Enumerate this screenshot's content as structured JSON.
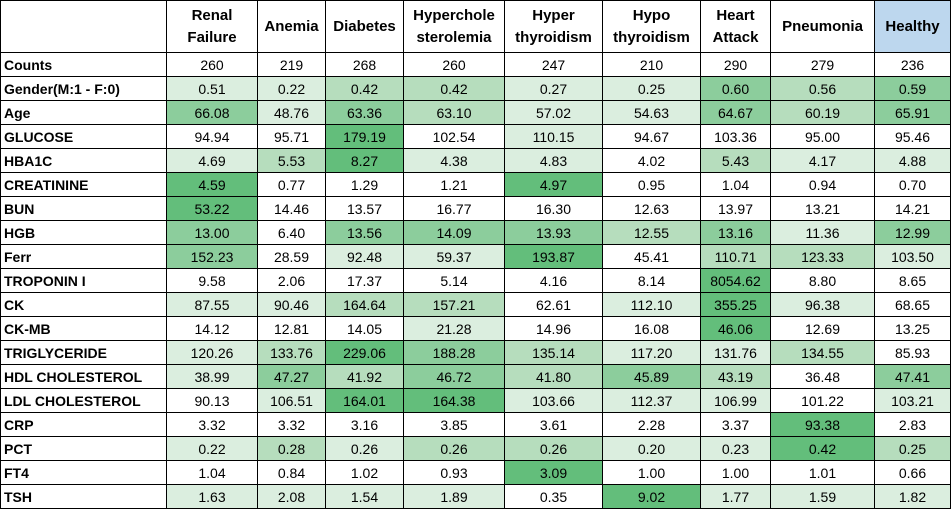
{
  "columns": [
    "Renal\nFailure",
    "Anemia",
    "Diabetes",
    "Hyperchole\nsterolemia",
    "Hyper\nthyroidism",
    "Hypo\nthyroidism",
    "Heart\nAttack",
    "Pneumonia",
    "Healthy"
  ],
  "highlight_column_color": "#bdd7ee",
  "heat_colors": {
    "strong": "#63be7b",
    "medium": "#8ccd9c",
    "light": "#b6ddbd",
    "pale": "#dbeedf",
    "none": "#ffffff"
  },
  "rows": [
    {
      "label": "Counts",
      "values": [
        "260",
        "219",
        "268",
        "260",
        "247",
        "210",
        "290",
        "279",
        "236"
      ],
      "shade": [
        "none",
        "none",
        "none",
        "none",
        "none",
        "none",
        "none",
        "none",
        "none"
      ]
    },
    {
      "label": "Gender(M:1 - F:0)",
      "values": [
        "0.51",
        "0.22",
        "0.42",
        "0.42",
        "0.27",
        "0.25",
        "0.60",
        "0.56",
        "0.59"
      ],
      "shade": [
        "pale",
        "pale",
        "light",
        "light",
        "pale",
        "pale",
        "medium",
        "light",
        "medium"
      ]
    },
    {
      "label": "Age",
      "values": [
        "66.08",
        "48.76",
        "63.36",
        "63.10",
        "57.02",
        "54.63",
        "64.67",
        "60.19",
        "65.91"
      ],
      "shade": [
        "medium",
        "pale",
        "medium",
        "light",
        "pale",
        "pale",
        "medium",
        "light",
        "medium"
      ]
    },
    {
      "label": "GLUCOSE",
      "values": [
        "94.94",
        "95.71",
        "179.19",
        "102.54",
        "110.15",
        "94.67",
        "103.36",
        "95.00",
        "95.46"
      ],
      "shade": [
        "none",
        "none",
        "strong",
        "none",
        "pale",
        "none",
        "none",
        "none",
        "none"
      ]
    },
    {
      "label": "HBA1C",
      "values": [
        "4.69",
        "5.53",
        "8.27",
        "4.38",
        "4.83",
        "4.02",
        "5.43",
        "4.17",
        "4.88"
      ],
      "shade": [
        "pale",
        "light",
        "strong",
        "pale",
        "pale",
        "none",
        "light",
        "pale",
        "pale"
      ]
    },
    {
      "label": "CREATININE",
      "values": [
        "4.59",
        "0.77",
        "1.29",
        "1.21",
        "4.97",
        "0.95",
        "1.04",
        "0.94",
        "0.70"
      ],
      "shade": [
        "strong",
        "none",
        "none",
        "none",
        "strong",
        "none",
        "none",
        "none",
        "none"
      ]
    },
    {
      "label": "BUN",
      "values": [
        "53.22",
        "14.46",
        "13.57",
        "16.77",
        "16.30",
        "12.63",
        "13.97",
        "13.21",
        "14.21"
      ],
      "shade": [
        "strong",
        "none",
        "none",
        "none",
        "none",
        "none",
        "none",
        "none",
        "none"
      ]
    },
    {
      "label": "HGB",
      "values": [
        "13.00",
        "6.40",
        "13.56",
        "14.09",
        "13.93",
        "12.55",
        "13.16",
        "11.36",
        "12.99"
      ],
      "shade": [
        "medium",
        "none",
        "medium",
        "medium",
        "medium",
        "light",
        "medium",
        "pale",
        "medium"
      ]
    },
    {
      "label": "Ferr",
      "values": [
        "152.23",
        "28.59",
        "92.48",
        "59.37",
        "193.87",
        "45.41",
        "110.71",
        "123.33",
        "103.50"
      ],
      "shade": [
        "medium",
        "none",
        "pale",
        "pale",
        "strong",
        "none",
        "light",
        "light",
        "pale"
      ]
    },
    {
      "label": "TROPONIN I",
      "values": [
        "9.58",
        "2.06",
        "17.37",
        "5.14",
        "4.16",
        "8.14",
        "8054.62",
        "8.80",
        "8.65"
      ],
      "shade": [
        "none",
        "none",
        "none",
        "none",
        "none",
        "none",
        "strong",
        "none",
        "none"
      ]
    },
    {
      "label": "CK",
      "values": [
        "87.55",
        "90.46",
        "164.64",
        "157.21",
        "62.61",
        "112.10",
        "355.25",
        "96.38",
        "68.65"
      ],
      "shade": [
        "pale",
        "pale",
        "light",
        "light",
        "none",
        "pale",
        "strong",
        "pale",
        "none"
      ]
    },
    {
      "label": "CK-MB",
      "values": [
        "14.12",
        "12.81",
        "14.05",
        "21.28",
        "14.96",
        "16.08",
        "46.06",
        "12.69",
        "13.25"
      ],
      "shade": [
        "none",
        "none",
        "none",
        "pale",
        "none",
        "none",
        "strong",
        "none",
        "none"
      ]
    },
    {
      "label": "TRIGLYCERIDE",
      "values": [
        "120.26",
        "133.76",
        "229.06",
        "188.28",
        "135.14",
        "117.20",
        "131.76",
        "134.55",
        "85.93"
      ],
      "shade": [
        "pale",
        "light",
        "strong",
        "medium",
        "light",
        "pale",
        "pale",
        "light",
        "none"
      ]
    },
    {
      "label": "HDL CHOLESTEROL",
      "values": [
        "38.99",
        "47.27",
        "41.92",
        "46.72",
        "41.80",
        "45.89",
        "43.19",
        "36.48",
        "47.41"
      ],
      "shade": [
        "pale",
        "medium",
        "light",
        "medium",
        "light",
        "medium",
        "light",
        "none",
        "medium"
      ]
    },
    {
      "label": "LDL CHOLESTEROL",
      "values": [
        "90.13",
        "106.51",
        "164.01",
        "164.38",
        "103.66",
        "112.37",
        "106.99",
        "101.22",
        "103.21"
      ],
      "shade": [
        "none",
        "pale",
        "strong",
        "strong",
        "pale",
        "pale",
        "pale",
        "none",
        "pale"
      ]
    },
    {
      "label": "CRP",
      "values": [
        "3.32",
        "3.32",
        "3.16",
        "3.85",
        "3.61",
        "2.28",
        "3.37",
        "93.38",
        "2.83"
      ],
      "shade": [
        "none",
        "none",
        "none",
        "none",
        "none",
        "none",
        "none",
        "strong",
        "none"
      ]
    },
    {
      "label": "PCT",
      "values": [
        "0.22",
        "0.28",
        "0.26",
        "0.26",
        "0.26",
        "0.20",
        "0.23",
        "0.42",
        "0.25"
      ],
      "shade": [
        "pale",
        "light",
        "pale",
        "light",
        "light",
        "pale",
        "pale",
        "strong",
        "light"
      ]
    },
    {
      "label": "FT4",
      "values": [
        "1.04",
        "0.84",
        "1.02",
        "0.93",
        "3.09",
        "1.00",
        "1.00",
        "1.01",
        "0.66"
      ],
      "shade": [
        "none",
        "none",
        "none",
        "none",
        "strong",
        "none",
        "none",
        "none",
        "none"
      ]
    },
    {
      "label": "TSH",
      "values": [
        "1.63",
        "2.08",
        "1.54",
        "1.89",
        "0.35",
        "9.02",
        "1.77",
        "1.59",
        "1.82"
      ],
      "shade": [
        "pale",
        "pale",
        "pale",
        "pale",
        "none",
        "strong",
        "pale",
        "pale",
        "pale"
      ]
    }
  ]
}
